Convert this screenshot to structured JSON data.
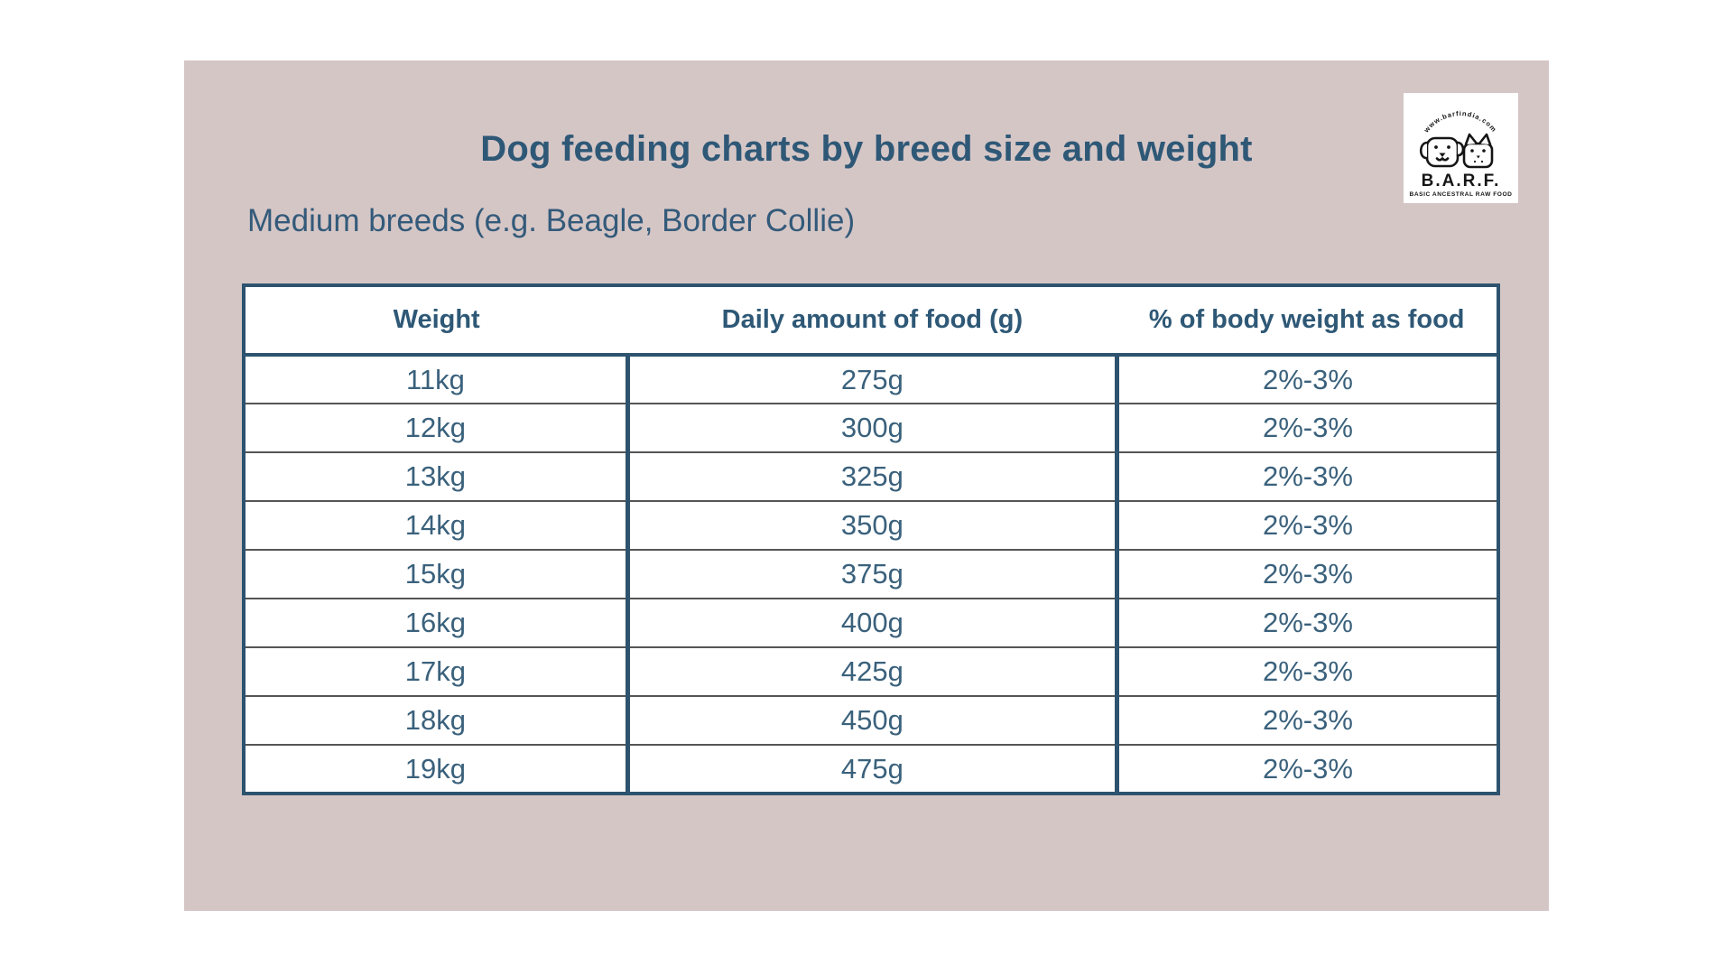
{
  "chart_data": {
    "type": "table",
    "title": "Dog feeding charts by breed size and weight",
    "subtitle": "Medium breeds (e.g. Beagle, Border Collie)",
    "columns": [
      "Weight",
      "Daily amount of food (g)",
      "% of body weight as food"
    ],
    "rows": [
      [
        "11kg",
        "275g",
        "2%-3%"
      ],
      [
        "12kg",
        "300g",
        "2%-3%"
      ],
      [
        "13kg",
        "325g",
        "2%-3%"
      ],
      [
        "14kg",
        "350g",
        "2%-3%"
      ],
      [
        "15kg",
        "375g",
        "2%-3%"
      ],
      [
        "16kg",
        "400g",
        "2%-3%"
      ],
      [
        "17kg",
        "425g",
        "2%-3%"
      ],
      [
        "18kg",
        "450g",
        "2%-3%"
      ],
      [
        "19kg",
        "475g",
        "2%-3%"
      ]
    ],
    "weights_kg": [
      11,
      12,
      13,
      14,
      15,
      16,
      17,
      18,
      19
    ],
    "daily_food_g": [
      275,
      300,
      325,
      350,
      375,
      400,
      425,
      450,
      475
    ],
    "body_weight_pct_range": "2%-3%"
  },
  "logo": {
    "arc_text": "www.barfindia.com",
    "name": "B.A.R.F.",
    "tagline": "BASIC ANCESTRAL RAW FOOD"
  },
  "colors": {
    "card_background": "#d5c6c6",
    "title_blue": "#2e5876",
    "table_border_blue": "#2d536f",
    "cell_text_blue": "#3a617c",
    "row_divider_gray": "#555555",
    "logo_ink": "#151515"
  }
}
